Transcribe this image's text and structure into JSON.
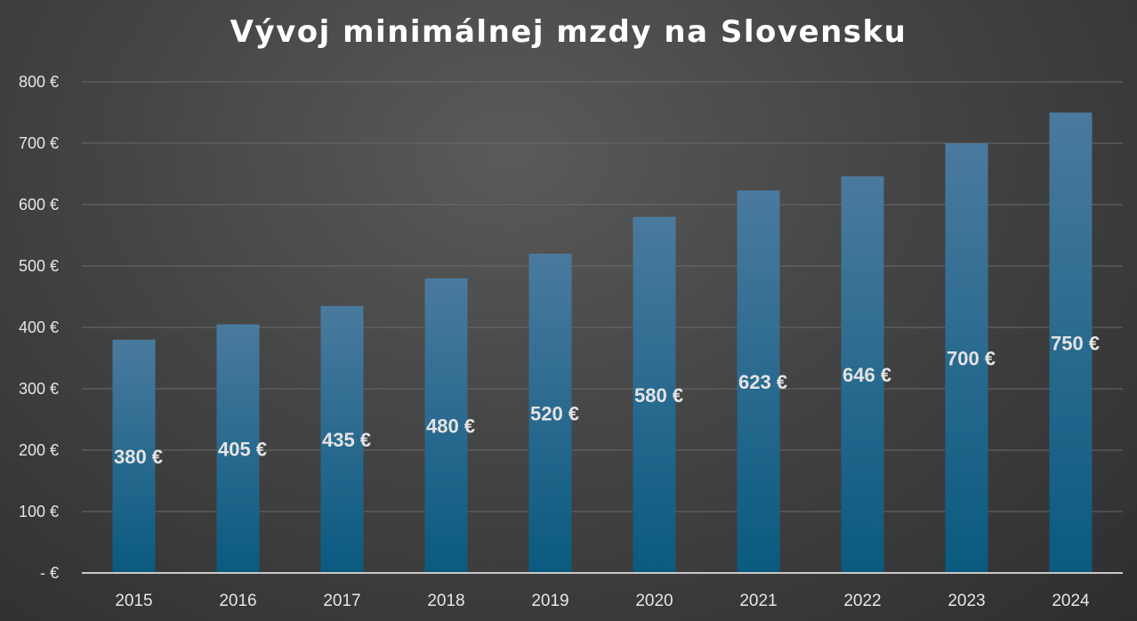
{
  "chart_data": {
    "type": "bar",
    "title": "Vývoj minimálnej mzdy na Slovensku",
    "xlabel": "",
    "ylabel": "",
    "categories": [
      "2015",
      "2016",
      "2017",
      "2018",
      "2019",
      "2020",
      "2021",
      "2022",
      "2023",
      "2024"
    ],
    "values": [
      380,
      405,
      435,
      480,
      520,
      580,
      623,
      646,
      700,
      750
    ],
    "data_labels": [
      "380 €",
      "405 €",
      "435 €",
      "480 €",
      "520 €",
      "580 €",
      "623 €",
      "646 €",
      "700 €",
      "750 €"
    ],
    "ylim": [
      0,
      800
    ],
    "yticks": [
      0,
      100,
      200,
      300,
      400,
      500,
      600,
      700,
      800
    ],
    "ytick_labels": [
      "-  €",
      "100 €",
      "200 €",
      "300 €",
      "400 €",
      "500 €",
      "600 €",
      "700 €",
      "800 €"
    ],
    "grid": true,
    "legend": "none",
    "colors": {
      "bar_top": "#4a7a9e",
      "bar_bottom": "#0a5a80",
      "background": "#444444"
    }
  }
}
